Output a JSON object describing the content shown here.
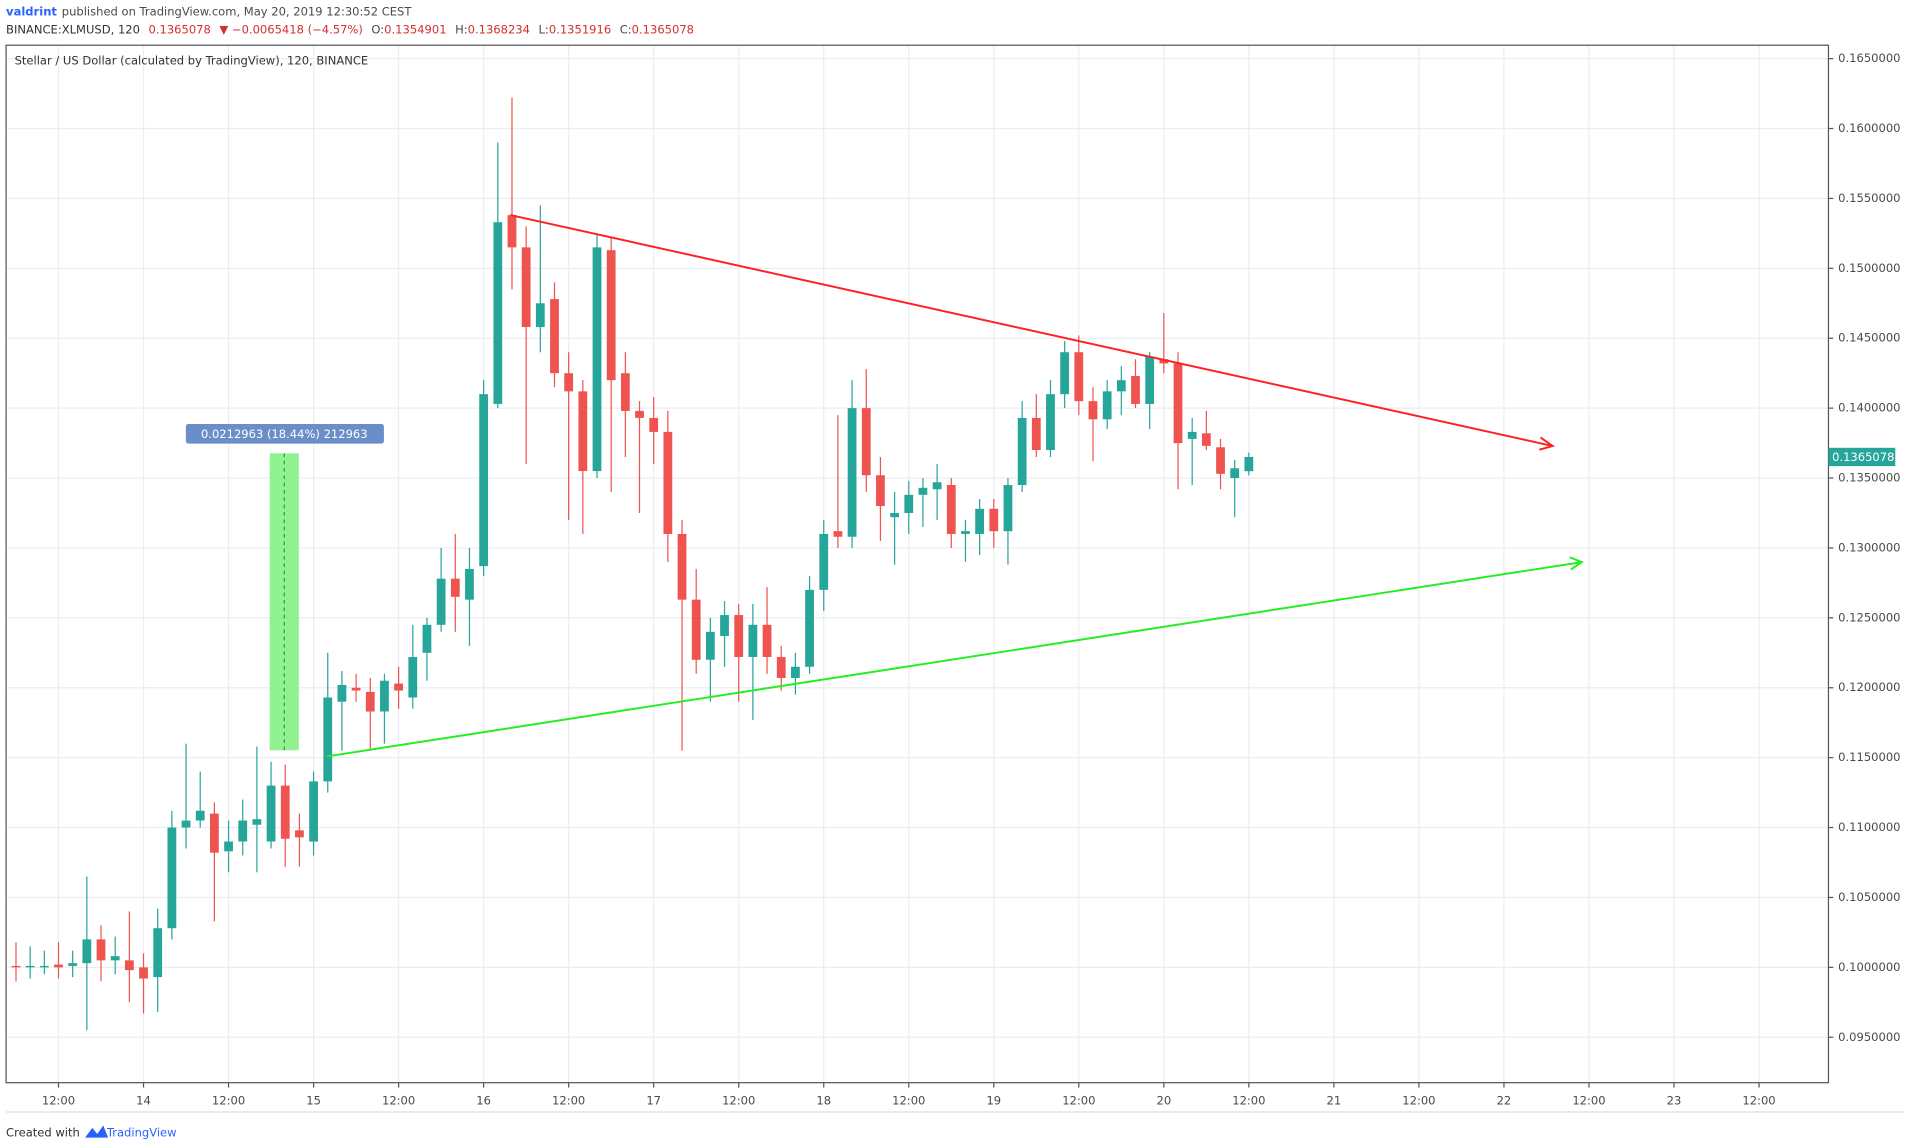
{
  "header": {
    "author": "valdrint",
    "published": "published on TradingView.com, May 20, 2019 12:30:52 CEST",
    "symbol": "BINANCE:XLMUSD, 120",
    "last": "0.1365078",
    "change": "▼ −0.0065418 (−4.57%)",
    "ohlc_legend": [
      {
        "label": "O:",
        "value": "0.1354901"
      },
      {
        "label": "H:",
        "value": "0.1368234"
      },
      {
        "label": "L:",
        "value": "0.1351916"
      },
      {
        "label": "C:",
        "value": "0.1365078"
      }
    ]
  },
  "chart_data": {
    "type": "candlestick",
    "title": "Stellar / US Dollar (calculated by TradingView), 120, BINANCE",
    "up_color": "#26a69a",
    "down_color": "#ef5350",
    "grid": true,
    "measure_label": "0.0212963 (18.44%) 212963",
    "last_price_label": "0.1365078",
    "last_price": 0.1365078,
    "xlim": [
      -0.7,
      127.9
    ],
    "xticks": [
      {
        "value": 3,
        "label": "12:00"
      },
      {
        "value": 9,
        "label": "14"
      },
      {
        "value": 15,
        "label": "12:00"
      },
      {
        "value": 21,
        "label": "15"
      },
      {
        "value": 27,
        "label": "12:00"
      },
      {
        "value": 33,
        "label": "16"
      },
      {
        "value": 39,
        "label": "12:00"
      },
      {
        "value": 45,
        "label": "17"
      },
      {
        "value": 51,
        "label": "12:00"
      },
      {
        "value": 57,
        "label": "18"
      },
      {
        "value": 63,
        "label": "12:00"
      },
      {
        "value": 69,
        "label": "19"
      },
      {
        "value": 75,
        "label": "12:00"
      },
      {
        "value": 81,
        "label": "20"
      },
      {
        "value": 87,
        "label": "12:00"
      },
      {
        "value": 93,
        "label": "21"
      },
      {
        "value": 99,
        "label": "12:00"
      },
      {
        "value": 105,
        "label": "22"
      },
      {
        "value": 111,
        "label": "12:00"
      },
      {
        "value": 117,
        "label": "23"
      },
      {
        "value": 123,
        "label": "12:00"
      }
    ],
    "ylim": [
      0.09175,
      0.16596
    ],
    "yticks": [
      {
        "value": 0.095,
        "label": "0.0950000"
      },
      {
        "value": 0.1,
        "label": "0.1000000"
      },
      {
        "value": 0.105,
        "label": "0.1050000"
      },
      {
        "value": 0.11,
        "label": "0.1100000"
      },
      {
        "value": 0.115,
        "label": "0.1150000"
      },
      {
        "value": 0.12,
        "label": "0.1200000"
      },
      {
        "value": 0.125,
        "label": "0.1250000"
      },
      {
        "value": 0.13,
        "label": "0.1300000"
      },
      {
        "value": 0.135,
        "label": "0.1350000"
      },
      {
        "value": 0.14,
        "label": "0.1400000"
      },
      {
        "value": 0.145,
        "label": "0.1450000"
      },
      {
        "value": 0.15,
        "label": "0.1500000"
      },
      {
        "value": 0.155,
        "label": "0.1550000"
      },
      {
        "value": 0.16,
        "label": "0.1600000"
      },
      {
        "value": 0.165,
        "label": "0.1650000"
      }
    ],
    "ohlc": [
      [
        0.1001,
        0.1018,
        0.099,
        0.1
      ],
      [
        0.1,
        0.1015,
        0.0992,
        0.1001
      ],
      [
        0.1,
        0.1012,
        0.0995,
        0.1001
      ],
      [
        0.1002,
        0.1018,
        0.0992,
        0.1
      ],
      [
        0.1001,
        0.1012,
        0.0993,
        0.1003
      ],
      [
        0.1003,
        0.1065,
        0.0955,
        0.102
      ],
      [
        0.102,
        0.103,
        0.099,
        0.1005
      ],
      [
        0.1005,
        0.1022,
        0.0995,
        0.1008
      ],
      [
        0.1005,
        0.104,
        0.0975,
        0.0998
      ],
      [
        0.1,
        0.101,
        0.0967,
        0.0992
      ],
      [
        0.0993,
        0.1042,
        0.0968,
        0.1028
      ],
      [
        0.1028,
        0.1112,
        0.102,
        0.11
      ],
      [
        0.11,
        0.116,
        0.1085,
        0.1105
      ],
      [
        0.1105,
        0.114,
        0.11,
        0.1112
      ],
      [
        0.111,
        0.1118,
        0.1033,
        0.1082
      ],
      [
        0.1083,
        0.1105,
        0.1068,
        0.109
      ],
      [
        0.109,
        0.112,
        0.108,
        0.1105
      ],
      [
        0.1102,
        0.1158,
        0.1068,
        0.1106
      ],
      [
        0.109,
        0.1147,
        0.1085,
        0.113
      ],
      [
        0.113,
        0.1145,
        0.1072,
        0.1092
      ],
      [
        0.1098,
        0.111,
        0.1072,
        0.1093
      ],
      [
        0.109,
        0.114,
        0.108,
        0.1133
      ],
      [
        0.1133,
        0.1225,
        0.1125,
        0.1193
      ],
      [
        0.119,
        0.1212,
        0.1155,
        0.1202
      ],
      [
        0.12,
        0.121,
        0.119,
        0.1198
      ],
      [
        0.1197,
        0.1207,
        0.1155,
        0.1183
      ],
      [
        0.1183,
        0.121,
        0.116,
        0.1205
      ],
      [
        0.1203,
        0.1215,
        0.1185,
        0.1198
      ],
      [
        0.1193,
        0.1245,
        0.1185,
        0.1222
      ],
      [
        0.1225,
        0.125,
        0.1205,
        0.1245
      ],
      [
        0.1245,
        0.13,
        0.124,
        0.1278
      ],
      [
        0.1278,
        0.131,
        0.124,
        0.1265
      ],
      [
        0.1263,
        0.13,
        0.123,
        0.1285
      ],
      [
        0.1287,
        0.142,
        0.128,
        0.141
      ],
      [
        0.1403,
        0.159,
        0.14,
        0.1533
      ],
      [
        0.1538,
        0.1622,
        0.1485,
        0.1515
      ],
      [
        0.1515,
        0.153,
        0.136,
        0.1458
      ],
      [
        0.1458,
        0.1545,
        0.144,
        0.1475
      ],
      [
        0.1478,
        0.149,
        0.1415,
        0.1425
      ],
      [
        0.1425,
        0.144,
        0.132,
        0.1412
      ],
      [
        0.1412,
        0.142,
        0.131,
        0.1355
      ],
      [
        0.1355,
        0.1525,
        0.135,
        0.1515
      ],
      [
        0.1513,
        0.1522,
        0.134,
        0.142
      ],
      [
        0.1425,
        0.144,
        0.1365,
        0.1398
      ],
      [
        0.1398,
        0.1405,
        0.1325,
        0.1393
      ],
      [
        0.1393,
        0.1408,
        0.136,
        0.1383
      ],
      [
        0.1383,
        0.1398,
        0.129,
        0.131
      ],
      [
        0.131,
        0.132,
        0.1155,
        0.1263
      ],
      [
        0.1263,
        0.1285,
        0.121,
        0.122
      ],
      [
        0.122,
        0.125,
        0.119,
        0.124
      ],
      [
        0.1237,
        0.1262,
        0.1215,
        0.1252
      ],
      [
        0.1252,
        0.126,
        0.119,
        0.1222
      ],
      [
        0.1222,
        0.126,
        0.1177,
        0.1245
      ],
      [
        0.1245,
        0.1272,
        0.121,
        0.1222
      ],
      [
        0.1222,
        0.123,
        0.1198,
        0.1207
      ],
      [
        0.1207,
        0.1225,
        0.1195,
        0.1215
      ],
      [
        0.1215,
        0.128,
        0.121,
        0.127
      ],
      [
        0.127,
        0.132,
        0.1255,
        0.131
      ],
      [
        0.1312,
        0.1395,
        0.13,
        0.1308
      ],
      [
        0.1308,
        0.142,
        0.13,
        0.14
      ],
      [
        0.14,
        0.1428,
        0.134,
        0.1352
      ],
      [
        0.1352,
        0.1365,
        0.1305,
        0.133
      ],
      [
        0.1322,
        0.134,
        0.1288,
        0.1325
      ],
      [
        0.1325,
        0.1348,
        0.131,
        0.1338
      ],
      [
        0.1338,
        0.135,
        0.1315,
        0.1343
      ],
      [
        0.1342,
        0.136,
        0.132,
        0.1347
      ],
      [
        0.1345,
        0.135,
        0.13,
        0.131
      ],
      [
        0.131,
        0.132,
        0.129,
        0.1312
      ],
      [
        0.131,
        0.1335,
        0.1295,
        0.1328
      ],
      [
        0.1328,
        0.1335,
        0.13,
        0.1312
      ],
      [
        0.1312,
        0.135,
        0.1288,
        0.1345
      ],
      [
        0.1345,
        0.1405,
        0.134,
        0.1393
      ],
      [
        0.1393,
        0.141,
        0.1365,
        0.137
      ],
      [
        0.137,
        0.142,
        0.1365,
        0.141
      ],
      [
        0.141,
        0.1448,
        0.14,
        0.144
      ],
      [
        0.144,
        0.1452,
        0.1395,
        0.1405
      ],
      [
        0.1405,
        0.1415,
        0.1362,
        0.1392
      ],
      [
        0.1392,
        0.142,
        0.1385,
        0.1412
      ],
      [
        0.1412,
        0.143,
        0.1395,
        0.142
      ],
      [
        0.1423,
        0.1435,
        0.14,
        0.1403
      ],
      [
        0.1403,
        0.144,
        0.1385,
        0.1437
      ],
      [
        0.1435,
        0.1468,
        0.1425,
        0.1432
      ],
      [
        0.1432,
        0.144,
        0.1342,
        0.1375
      ],
      [
        0.1378,
        0.1393,
        0.1345,
        0.1383
      ],
      [
        0.1382,
        0.1398,
        0.137,
        0.1373
      ],
      [
        0.1372,
        0.1378,
        0.1342,
        0.1353
      ],
      [
        0.135,
        0.1363,
        0.1322,
        0.1357
      ],
      [
        0.1354901,
        0.1368234,
        0.1351916,
        0.1365078
      ]
    ]
  },
  "footer": {
    "created": "Created with",
    "brand": "TradingView"
  }
}
